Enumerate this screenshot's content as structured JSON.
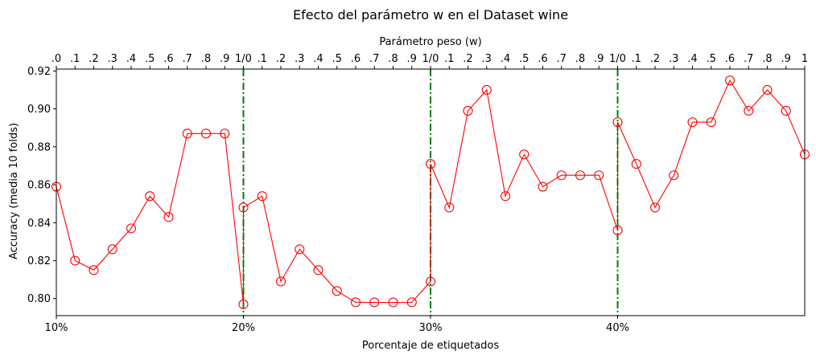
{
  "chart_data": {
    "type": "line",
    "title": "Efecto del parámetro w en el Dataset wine",
    "xlabel": "Porcentaje de etiquetados",
    "ylabel": "Accuracy (media 10 folds)",
    "top_xlabel": "Parámetro peso (w)",
    "x_range": [
      0,
      40
    ],
    "ylim": [
      0.791,
      0.921
    ],
    "yticks": [
      0.8,
      0.82,
      0.84,
      0.86,
      0.88,
      0.9,
      0.92
    ],
    "ytick_labels": [
      "0.80",
      "0.82",
      "0.84",
      "0.86",
      "0.88",
      "0.90",
      "0.92"
    ],
    "bottom_ticks": [
      {
        "pos": 0,
        "label": "10%"
      },
      {
        "pos": 10,
        "label": "20%"
      },
      {
        "pos": 20,
        "label": "30%"
      },
      {
        "pos": 30,
        "label": "40%"
      }
    ],
    "top_tick_labels": [
      ".0",
      ".1",
      ".2",
      ".3",
      ".4",
      ".5",
      ".6",
      ".7",
      ".8",
      ".9",
      "1/0",
      ".1",
      ".2",
      ".3",
      ".4",
      ".5",
      ".6",
      ".7",
      ".8",
      ".9",
      "1/0",
      ".1",
      ".2",
      ".3",
      ".4",
      ".5",
      ".6",
      ".7",
      ".8",
      ".9",
      "1/0",
      ".1",
      ".2",
      ".3",
      ".4",
      ".5",
      ".6",
      ".7",
      ".8",
      ".9",
      "1"
    ],
    "vlines": [
      10,
      20,
      30
    ],
    "series": [
      {
        "color": "#ff0000",
        "x": [
          0,
          1,
          2,
          3,
          4,
          5,
          6,
          7,
          8,
          9,
          10,
          10,
          11,
          12,
          13,
          14,
          15,
          16,
          17,
          18,
          19,
          20,
          20,
          21,
          22,
          23,
          24,
          25,
          26,
          27,
          28,
          29,
          30,
          30,
          31,
          32,
          33,
          34,
          35,
          36,
          37,
          38,
          39,
          40
        ],
        "y": [
          0.859,
          0.82,
          0.815,
          0.826,
          0.837,
          0.854,
          0.843,
          0.887,
          0.887,
          0.887,
          0.797,
          0.848,
          0.854,
          0.809,
          0.826,
          0.815,
          0.804,
          0.798,
          0.798,
          0.798,
          0.798,
          0.809,
          0.871,
          0.848,
          0.899,
          0.91,
          0.854,
          0.876,
          0.859,
          0.865,
          0.865,
          0.865,
          0.836,
          0.893,
          0.871,
          0.848,
          0.865,
          0.893,
          0.893,
          0.915,
          0.899,
          0.91,
          0.899,
          0.876
        ]
      }
    ],
    "vline_color": "#008000",
    "grid": false
  }
}
